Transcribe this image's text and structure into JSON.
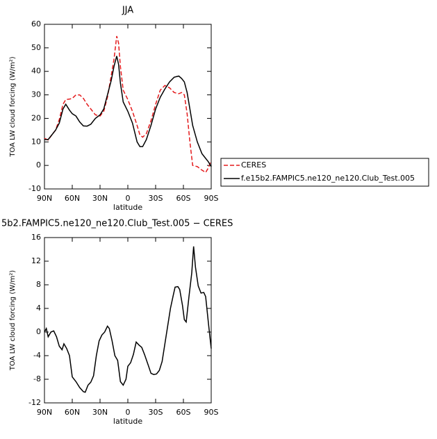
{
  "chart_data": [
    {
      "type": "line",
      "title": "JJA",
      "xlabel": "latitude",
      "ylabel": "TOA LW cloud forcing (W/m²)",
      "x": [
        90,
        86,
        82,
        78,
        74,
        70,
        67,
        63,
        60,
        56,
        52,
        48,
        44,
        40,
        35,
        30,
        26,
        22,
        18,
        15,
        12,
        10,
        8,
        5,
        0,
        -5,
        -10,
        -13,
        -16,
        -20,
        -25,
        -30,
        -35,
        -40,
        -45,
        -50,
        -55,
        -58,
        -61,
        -64,
        -67,
        -70,
        -75,
        -80,
        -84,
        -87,
        -90
      ],
      "series": [
        {
          "name": "CERES",
          "color": "#e41a1c",
          "dashed": true,
          "values": [
            11.5,
            10.8,
            13,
            15,
            19.5,
            26,
            28,
            28.2,
            28.5,
            30,
            30,
            28.5,
            26,
            24,
            21.5,
            21,
            23,
            29,
            38,
            45,
            55,
            52,
            42,
            32,
            28,
            23,
            17,
            13,
            12,
            13.5,
            19,
            26,
            32,
            34,
            33,
            31,
            30.5,
            31,
            30,
            22,
            10,
            0,
            -0.5,
            -2,
            -3,
            -1,
            2
          ]
        },
        {
          "name": "f.e15b2.FAMPIC5.ne120_ne120.Club_Test.005",
          "color": "#000000",
          "dashed": false,
          "values": [
            11,
            11,
            13,
            15,
            18,
            24,
            26,
            23.5,
            22,
            21,
            18.5,
            16.8,
            16.7,
            17.5,
            20,
            21.5,
            24,
            30,
            36,
            42,
            46.5,
            43,
            35,
            27,
            23,
            18,
            10,
            8,
            8,
            11,
            17,
            24,
            29,
            32.5,
            35.5,
            37.5,
            38,
            37,
            35.5,
            31,
            24,
            17,
            10,
            5,
            3,
            1.5,
            -0.5
          ]
        }
      ],
      "xlim": [
        90,
        -90
      ],
      "xticks": [
        {
          "value": 90,
          "label": "90N"
        },
        {
          "value": 60,
          "label": "60N"
        },
        {
          "value": 30,
          "label": "30N"
        },
        0,
        {
          "value": -30,
          "label": "30S"
        },
        {
          "value": -60,
          "label": "60S"
        },
        {
          "value": -90,
          "label": "90S"
        }
      ],
      "ylim": [
        -10,
        60
      ],
      "yticks": [
        -10,
        0,
        10,
        20,
        30,
        40,
        50,
        60
      ],
      "legend": "right"
    },
    {
      "type": "line",
      "title": "5b2.FAMPIC5.ne120_ne120.Club_Test.005 − CERES",
      "xlabel": "latitude",
      "ylabel": "TOA LW cloud forcing (W/m²)",
      "x": [
        90,
        88,
        86,
        83,
        80,
        77,
        74,
        71,
        69,
        66,
        63,
        60,
        56,
        52,
        48,
        46,
        43,
        40,
        37,
        34,
        31,
        28,
        25,
        22,
        20,
        17,
        14,
        11,
        8,
        5,
        2,
        0,
        -3,
        -6,
        -9,
        -12,
        -15,
        -18,
        -22,
        -25,
        -28,
        -31,
        -34,
        -37,
        -40,
        -43,
        -46,
        -49,
        -51,
        -54,
        -56,
        -59,
        -61,
        -63,
        -66,
        -69,
        -71,
        -73,
        -76,
        -79,
        -82,
        -84,
        -87,
        -90
      ],
      "series": [
        {
          "color": "#000000",
          "dashed": false,
          "values": [
            0,
            0.6,
            -0.8,
            0,
            0.2,
            -0.8,
            -2.4,
            -3,
            -2,
            -2.8,
            -4,
            -7.6,
            -8.4,
            -9.4,
            -10.1,
            -10.2,
            -9,
            -8.5,
            -7.4,
            -4,
            -1.5,
            -0.5,
            0,
            1,
            0.6,
            -1.5,
            -4,
            -4.8,
            -8.4,
            -9,
            -8,
            -5.8,
            -5.2,
            -3.8,
            -1.7,
            -2.2,
            -2.6,
            -3.8,
            -5.6,
            -7,
            -7.2,
            -7.1,
            -6.5,
            -5,
            -2,
            1,
            4,
            6.2,
            7.6,
            7.7,
            7.2,
            4.5,
            2.1,
            1.7,
            6,
            10,
            14.5,
            11,
            7.8,
            6.6,
            6.7,
            6,
            1.5,
            -2.8
          ]
        }
      ],
      "xlim": [
        90,
        -90
      ],
      "xticks": [
        {
          "value": 90,
          "label": "90N"
        },
        {
          "value": 60,
          "label": "60N"
        },
        {
          "value": 30,
          "label": "30N"
        },
        0,
        {
          "value": -30,
          "label": "30S"
        },
        {
          "value": -60,
          "label": "60S"
        },
        {
          "value": -90,
          "label": "90S"
        }
      ],
      "ylim": [
        -12,
        16
      ],
      "yticks": [
        -12,
        -8,
        -4,
        0,
        4,
        8,
        12,
        16
      ]
    }
  ]
}
